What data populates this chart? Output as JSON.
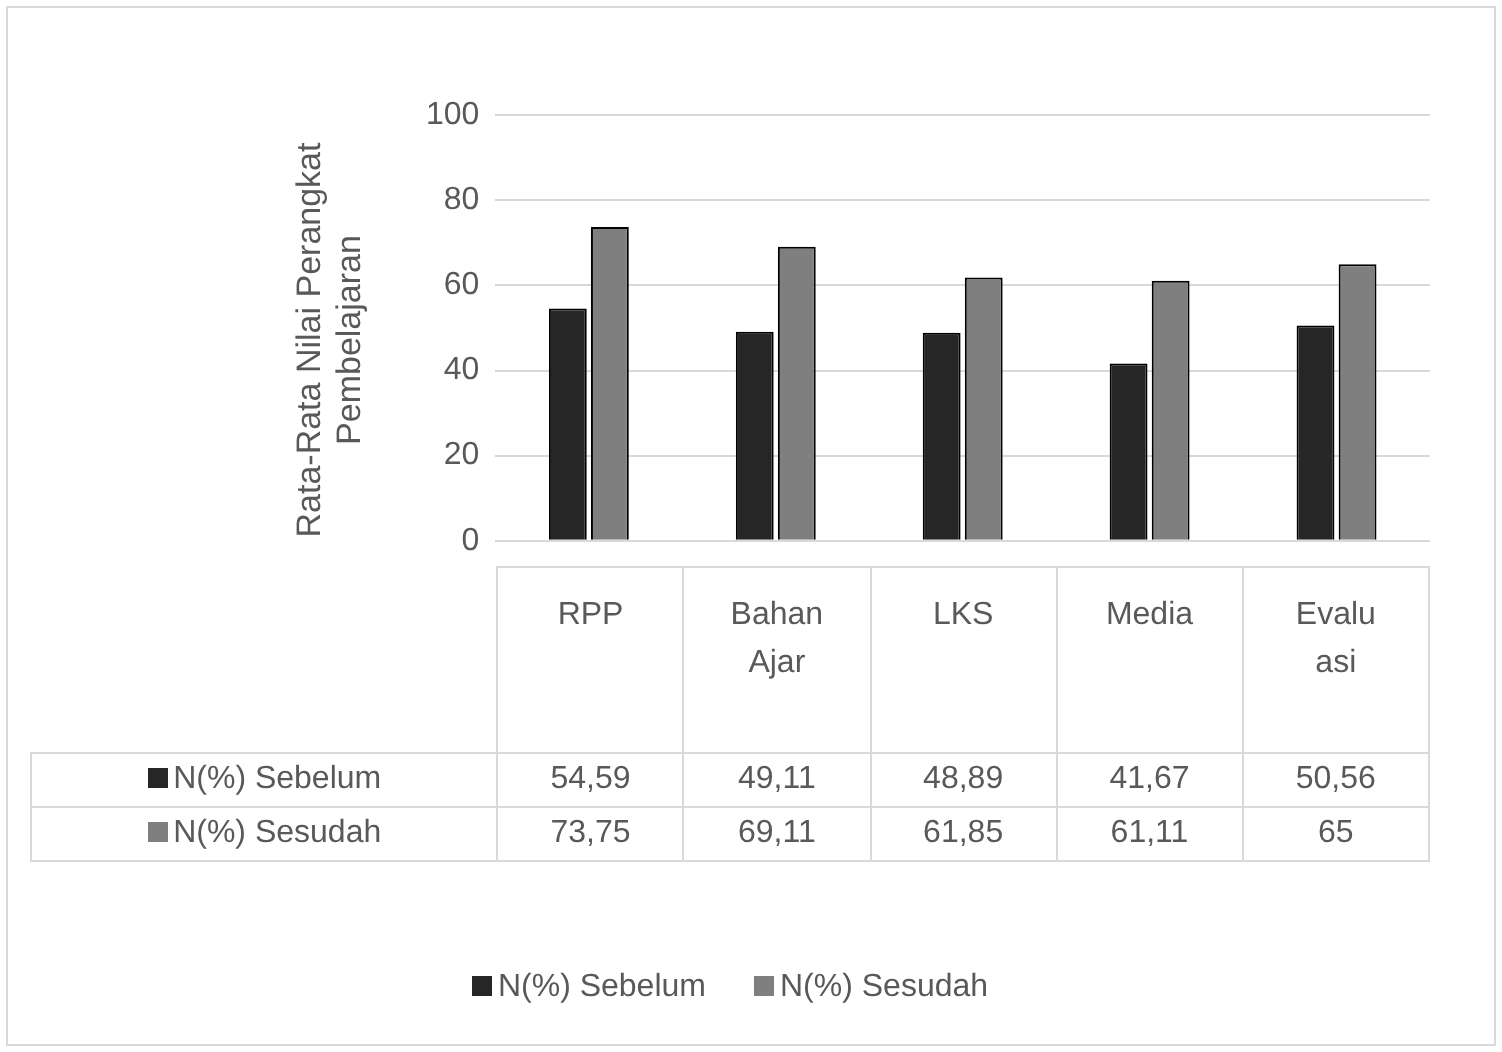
{
  "chart_data": {
    "type": "bar",
    "ylabel": "Rata-Rata Nilai Perangkat Pembelajaran",
    "categories": [
      "RPP",
      "Bahan Ajar",
      "LKS",
      "Media",
      "Evaluasi"
    ],
    "series": [
      {
        "name": "N(%) Sebelum",
        "color": "#262626",
        "values": [
          54.59,
          49.11,
          48.89,
          41.67,
          50.56
        ],
        "value_labels": [
          "54,59",
          "49,11",
          "48,89",
          "41,67",
          "50,56"
        ]
      },
      {
        "name": "N(%) Sesudah",
        "color": "#7f7f7f",
        "values": [
          73.75,
          69.11,
          61.85,
          61.11,
          65
        ],
        "value_labels": [
          "73,75",
          "69,11",
          "61,85",
          "61,11",
          "65"
        ]
      }
    ],
    "ylim": [
      0,
      100
    ],
    "yticks": [
      0,
      20,
      40,
      60,
      80,
      100
    ],
    "grid": "y",
    "legend": "bottom"
  }
}
